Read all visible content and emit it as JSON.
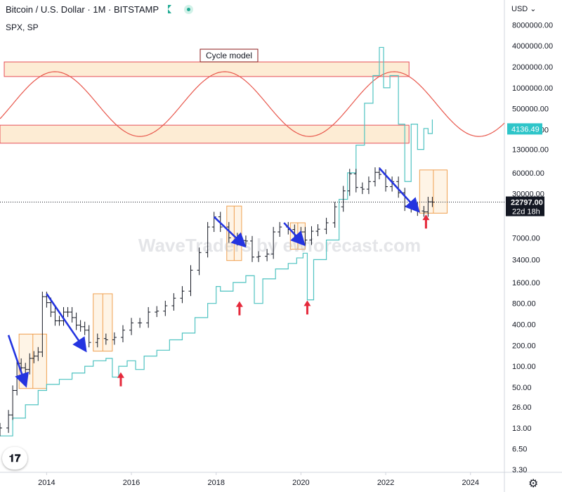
{
  "header": {
    "symbol": "Bitcoin",
    "separator": "/",
    "quote": "U.S. Dollar",
    "interval": "1M",
    "exchange": "BITSTAMP",
    "compare_symbol": "SPX, SP",
    "currency_menu": "USD",
    "currency_caret": "⌄"
  },
  "watermark": "WaveTraders by ewforecast.com",
  "tv_logo": "𝟏𝟕",
  "gear_icon": "⚙",
  "colors": {
    "btc": "#131722",
    "spx": "#4fc3c1",
    "cycle": "#e8574c",
    "zone_fill": "#fdebd2",
    "zone_border": "#e5454f",
    "box_border": "#f0a050",
    "arrow_blue": "#2434e0",
    "arrow_red": "#e5293b",
    "axis_text": "#131722",
    "price_tag": "#131722",
    "spx_tag": "#2ec5c9"
  },
  "chart_data": {
    "type": "line",
    "title": "Bitcoin / U.S. Dollar · 1M · BITSTAMP",
    "scale": "log",
    "x_tick_labels": [
      "2014",
      "2016",
      "2018",
      "2020",
      "2022",
      "2024"
    ],
    "y_tick_labels": [
      "8000000.00",
      "4000000.00",
      "2000000.00",
      "1000000.00",
      "500000.00",
      "250000.00",
      "130000.00",
      "60000.00",
      "30000.00",
      "7000.00",
      "3400.00",
      "1600.00",
      "800.00",
      "400.00",
      "200.00",
      "100.00",
      "50.00",
      "26.00",
      "13.00",
      "6.50",
      "3.30"
    ],
    "ylim": [
      3.0,
      9500000
    ],
    "xlim": [
      2012.9,
      2024.8
    ],
    "series": [
      {
        "name": "Bitcoin / U.S. Dollar",
        "style": "ohlc",
        "points": [
          [
            2012.9,
            13
          ],
          [
            2013.1,
            20
          ],
          [
            2013.2,
            45
          ],
          [
            2013.3,
            110
          ],
          [
            2013.4,
            95
          ],
          [
            2013.5,
            90
          ],
          [
            2013.6,
            130
          ],
          [
            2013.7,
            140
          ],
          [
            2013.8,
            160
          ],
          [
            2013.9,
            1000
          ],
          [
            2014.0,
            820
          ],
          [
            2014.1,
            600
          ],
          [
            2014.2,
            450
          ],
          [
            2014.3,
            450
          ],
          [
            2014.4,
            600
          ],
          [
            2014.5,
            600
          ],
          [
            2014.6,
            500
          ],
          [
            2014.7,
            390
          ],
          [
            2014.8,
            370
          ],
          [
            2014.9,
            330
          ],
          [
            2015.0,
            220
          ],
          [
            2015.2,
            250
          ],
          [
            2015.4,
            240
          ],
          [
            2015.6,
            260
          ],
          [
            2015.8,
            330
          ],
          [
            2016.0,
            420
          ],
          [
            2016.2,
            420
          ],
          [
            2016.4,
            600
          ],
          [
            2016.6,
            620
          ],
          [
            2016.8,
            740
          ],
          [
            2017.0,
            950
          ],
          [
            2017.2,
            1200
          ],
          [
            2017.4,
            2400
          ],
          [
            2017.6,
            4300
          ],
          [
            2017.8,
            10000
          ],
          [
            2017.95,
            14000
          ],
          [
            2018.1,
            10000
          ],
          [
            2018.3,
            7000
          ],
          [
            2018.5,
            6400
          ],
          [
            2018.7,
            6300
          ],
          [
            2018.85,
            3700
          ],
          [
            2019.0,
            3800
          ],
          [
            2019.2,
            4100
          ],
          [
            2019.35,
            8500
          ],
          [
            2019.5,
            10000
          ],
          [
            2019.7,
            9200
          ],
          [
            2019.85,
            7200
          ],
          [
            2020.0,
            8500
          ],
          [
            2020.1,
            6500
          ],
          [
            2020.25,
            8700
          ],
          [
            2020.4,
            9300
          ],
          [
            2020.6,
            11500
          ],
          [
            2020.8,
            19500
          ],
          [
            2021.0,
            33000
          ],
          [
            2021.15,
            58000
          ],
          [
            2021.3,
            37000
          ],
          [
            2021.45,
            35000
          ],
          [
            2021.6,
            45000
          ],
          [
            2021.75,
            61000
          ],
          [
            2021.85,
            57000
          ],
          [
            2022.0,
            38000
          ],
          [
            2022.15,
            45000
          ],
          [
            2022.3,
            31000
          ],
          [
            2022.45,
            20000
          ],
          [
            2022.6,
            19000
          ],
          [
            2022.75,
            17000
          ],
          [
            2022.9,
            16500
          ],
          [
            2023.0,
            23000
          ],
          [
            2023.1,
            22797
          ]
        ]
      },
      {
        "name": "SPX, SP",
        "style": "step-line",
        "last_value": 4136.49,
        "points": [
          [
            2012.9,
            10
          ],
          [
            2013.2,
            18
          ],
          [
            2013.5,
            28
          ],
          [
            2013.8,
            45
          ],
          [
            2014.0,
            55
          ],
          [
            2014.3,
            65
          ],
          [
            2014.6,
            80
          ],
          [
            2014.9,
            100
          ],
          [
            2015.1,
            120
          ],
          [
            2015.4,
            130
          ],
          [
            2015.55,
            70
          ],
          [
            2015.7,
            100
          ],
          [
            2015.9,
            120
          ],
          [
            2016.1,
            90
          ],
          [
            2016.3,
            140
          ],
          [
            2016.6,
            170
          ],
          [
            2016.9,
            240
          ],
          [
            2017.2,
            300
          ],
          [
            2017.5,
            500
          ],
          [
            2017.8,
            800
          ],
          [
            2018.0,
            1400
          ],
          [
            2018.1,
            1200
          ],
          [
            2018.4,
            1600
          ],
          [
            2018.7,
            2000
          ],
          [
            2018.9,
            800
          ],
          [
            2019.1,
            1800
          ],
          [
            2019.4,
            2500
          ],
          [
            2019.7,
            3000
          ],
          [
            2019.9,
            3600
          ],
          [
            2020.05,
            4200
          ],
          [
            2020.15,
            900
          ],
          [
            2020.3,
            3400
          ],
          [
            2020.6,
            6500
          ],
          [
            2020.9,
            25000
          ],
          [
            2021.1,
            60000
          ],
          [
            2021.3,
            150000
          ],
          [
            2021.5,
            600000
          ],
          [
            2021.7,
            1500000
          ],
          [
            2021.85,
            3800000
          ],
          [
            2021.95,
            1000000
          ],
          [
            2022.1,
            1500000
          ],
          [
            2022.3,
            300000
          ],
          [
            2022.45,
            45000
          ],
          [
            2022.6,
            300000
          ],
          [
            2022.75,
            130000
          ],
          [
            2022.9,
            260000
          ],
          [
            2023.0,
            220000
          ],
          [
            2023.1,
            350000
          ]
        ]
      },
      {
        "name": "Cycle model",
        "style": "sine",
        "period_years": 4,
        "peaks": [
          2014.2,
          2018.2,
          2022.2
        ],
        "troughs": [
          2016.2,
          2020.2,
          2024.2
        ],
        "high_value": 1700000,
        "low_value": 200000
      }
    ],
    "annotations": {
      "cycle_label": "Cycle model",
      "zones": [
        {
          "label": "upper",
          "x": [
            2013.0,
            2022.55
          ],
          "y": [
            1450000,
            2350000
          ]
        },
        {
          "label": "lower",
          "x": [
            2012.9,
            2022.55
          ],
          "y": [
            160000,
            290000
          ]
        }
      ],
      "boxes": [
        {
          "x": [
            2013.35,
            2014.0
          ],
          "y": [
            48,
            290
          ]
        },
        {
          "x": [
            2015.1,
            2015.55
          ],
          "y": [
            165,
            1100
          ]
        },
        {
          "x": [
            2018.25,
            2018.6
          ],
          "y": [
            3300,
            20000
          ]
        },
        {
          "x": [
            2019.75,
            2020.1
          ],
          "y": [
            4800,
            11500
          ]
        },
        {
          "x": [
            2022.8,
            2023.45
          ],
          "y": [
            15800,
            66000
          ]
        }
      ],
      "blue_arrows": [
        {
          "from": [
            2013.1,
            280
          ],
          "to": [
            2013.5,
            55
          ]
        },
        {
          "from": [
            2014.0,
            1100
          ],
          "to": [
            2014.9,
            175
          ]
        },
        {
          "from": [
            2017.95,
            14000
          ],
          "to": [
            2018.65,
            5500
          ]
        },
        {
          "from": [
            2019.6,
            11500
          ],
          "to": [
            2020.05,
            5800
          ]
        },
        {
          "from": [
            2021.85,
            70000
          ],
          "to": [
            2022.75,
            17500
          ]
        }
      ],
      "red_arrows": [
        [
          2015.75,
          65
        ],
        [
          2018.55,
          680
        ],
        [
          2020.15,
          700
        ],
        [
          2022.95,
          12000
        ]
      ],
      "current_price": "22797.00",
      "countdown": "22d 18h",
      "spx_label": "4136.49"
    }
  }
}
